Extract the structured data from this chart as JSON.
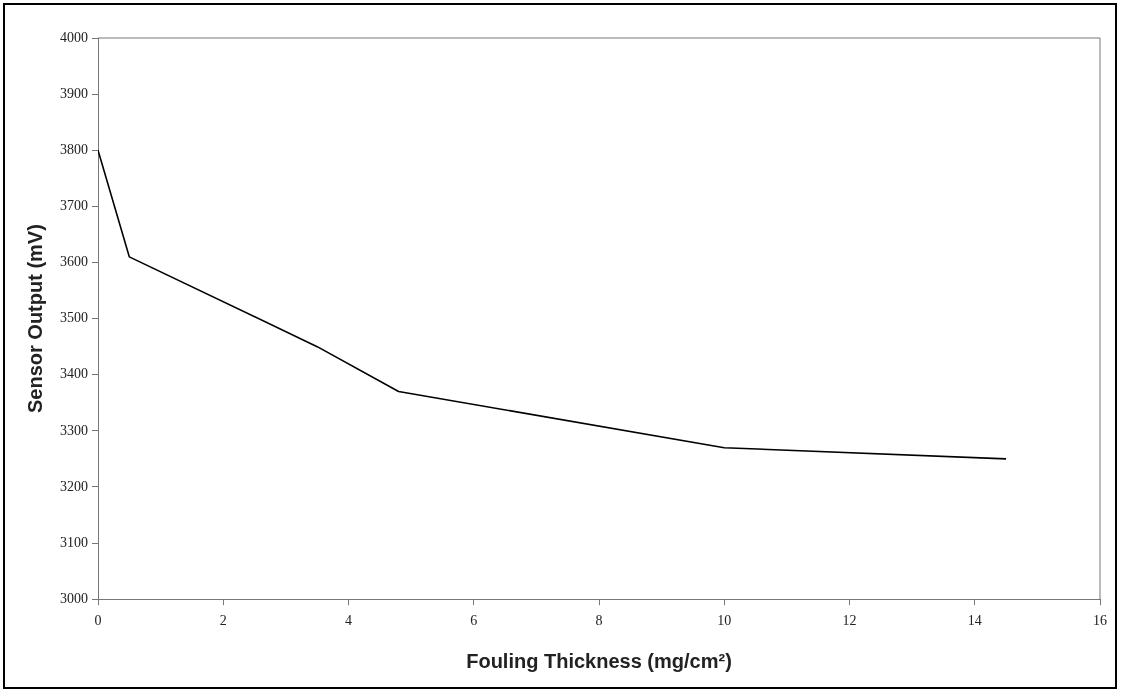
{
  "chart_data": {
    "type": "line",
    "xlabel": "Fouling Thickness (mg/cm²)",
    "ylabel": "Sensor Output (mV)",
    "series": [
      {
        "color": "#000000",
        "x": [
          0,
          0.5,
          3.5,
          4.8,
          10,
          14.5
        ],
        "values": [
          3800,
          3610,
          3450,
          3370,
          3270,
          3250
        ]
      }
    ],
    "xlim": [
      0,
      16
    ],
    "xticks": [
      0,
      2,
      4,
      6,
      8,
      10,
      12,
      14,
      16
    ],
    "ylim": [
      3000,
      4000
    ],
    "yticks": [
      3000,
      3100,
      3200,
      3300,
      3400,
      3500,
      3600,
      3700,
      3800,
      3900,
      4000
    ],
    "grid": false,
    "legend": false,
    "marker": "none",
    "line_style": "solid"
  }
}
